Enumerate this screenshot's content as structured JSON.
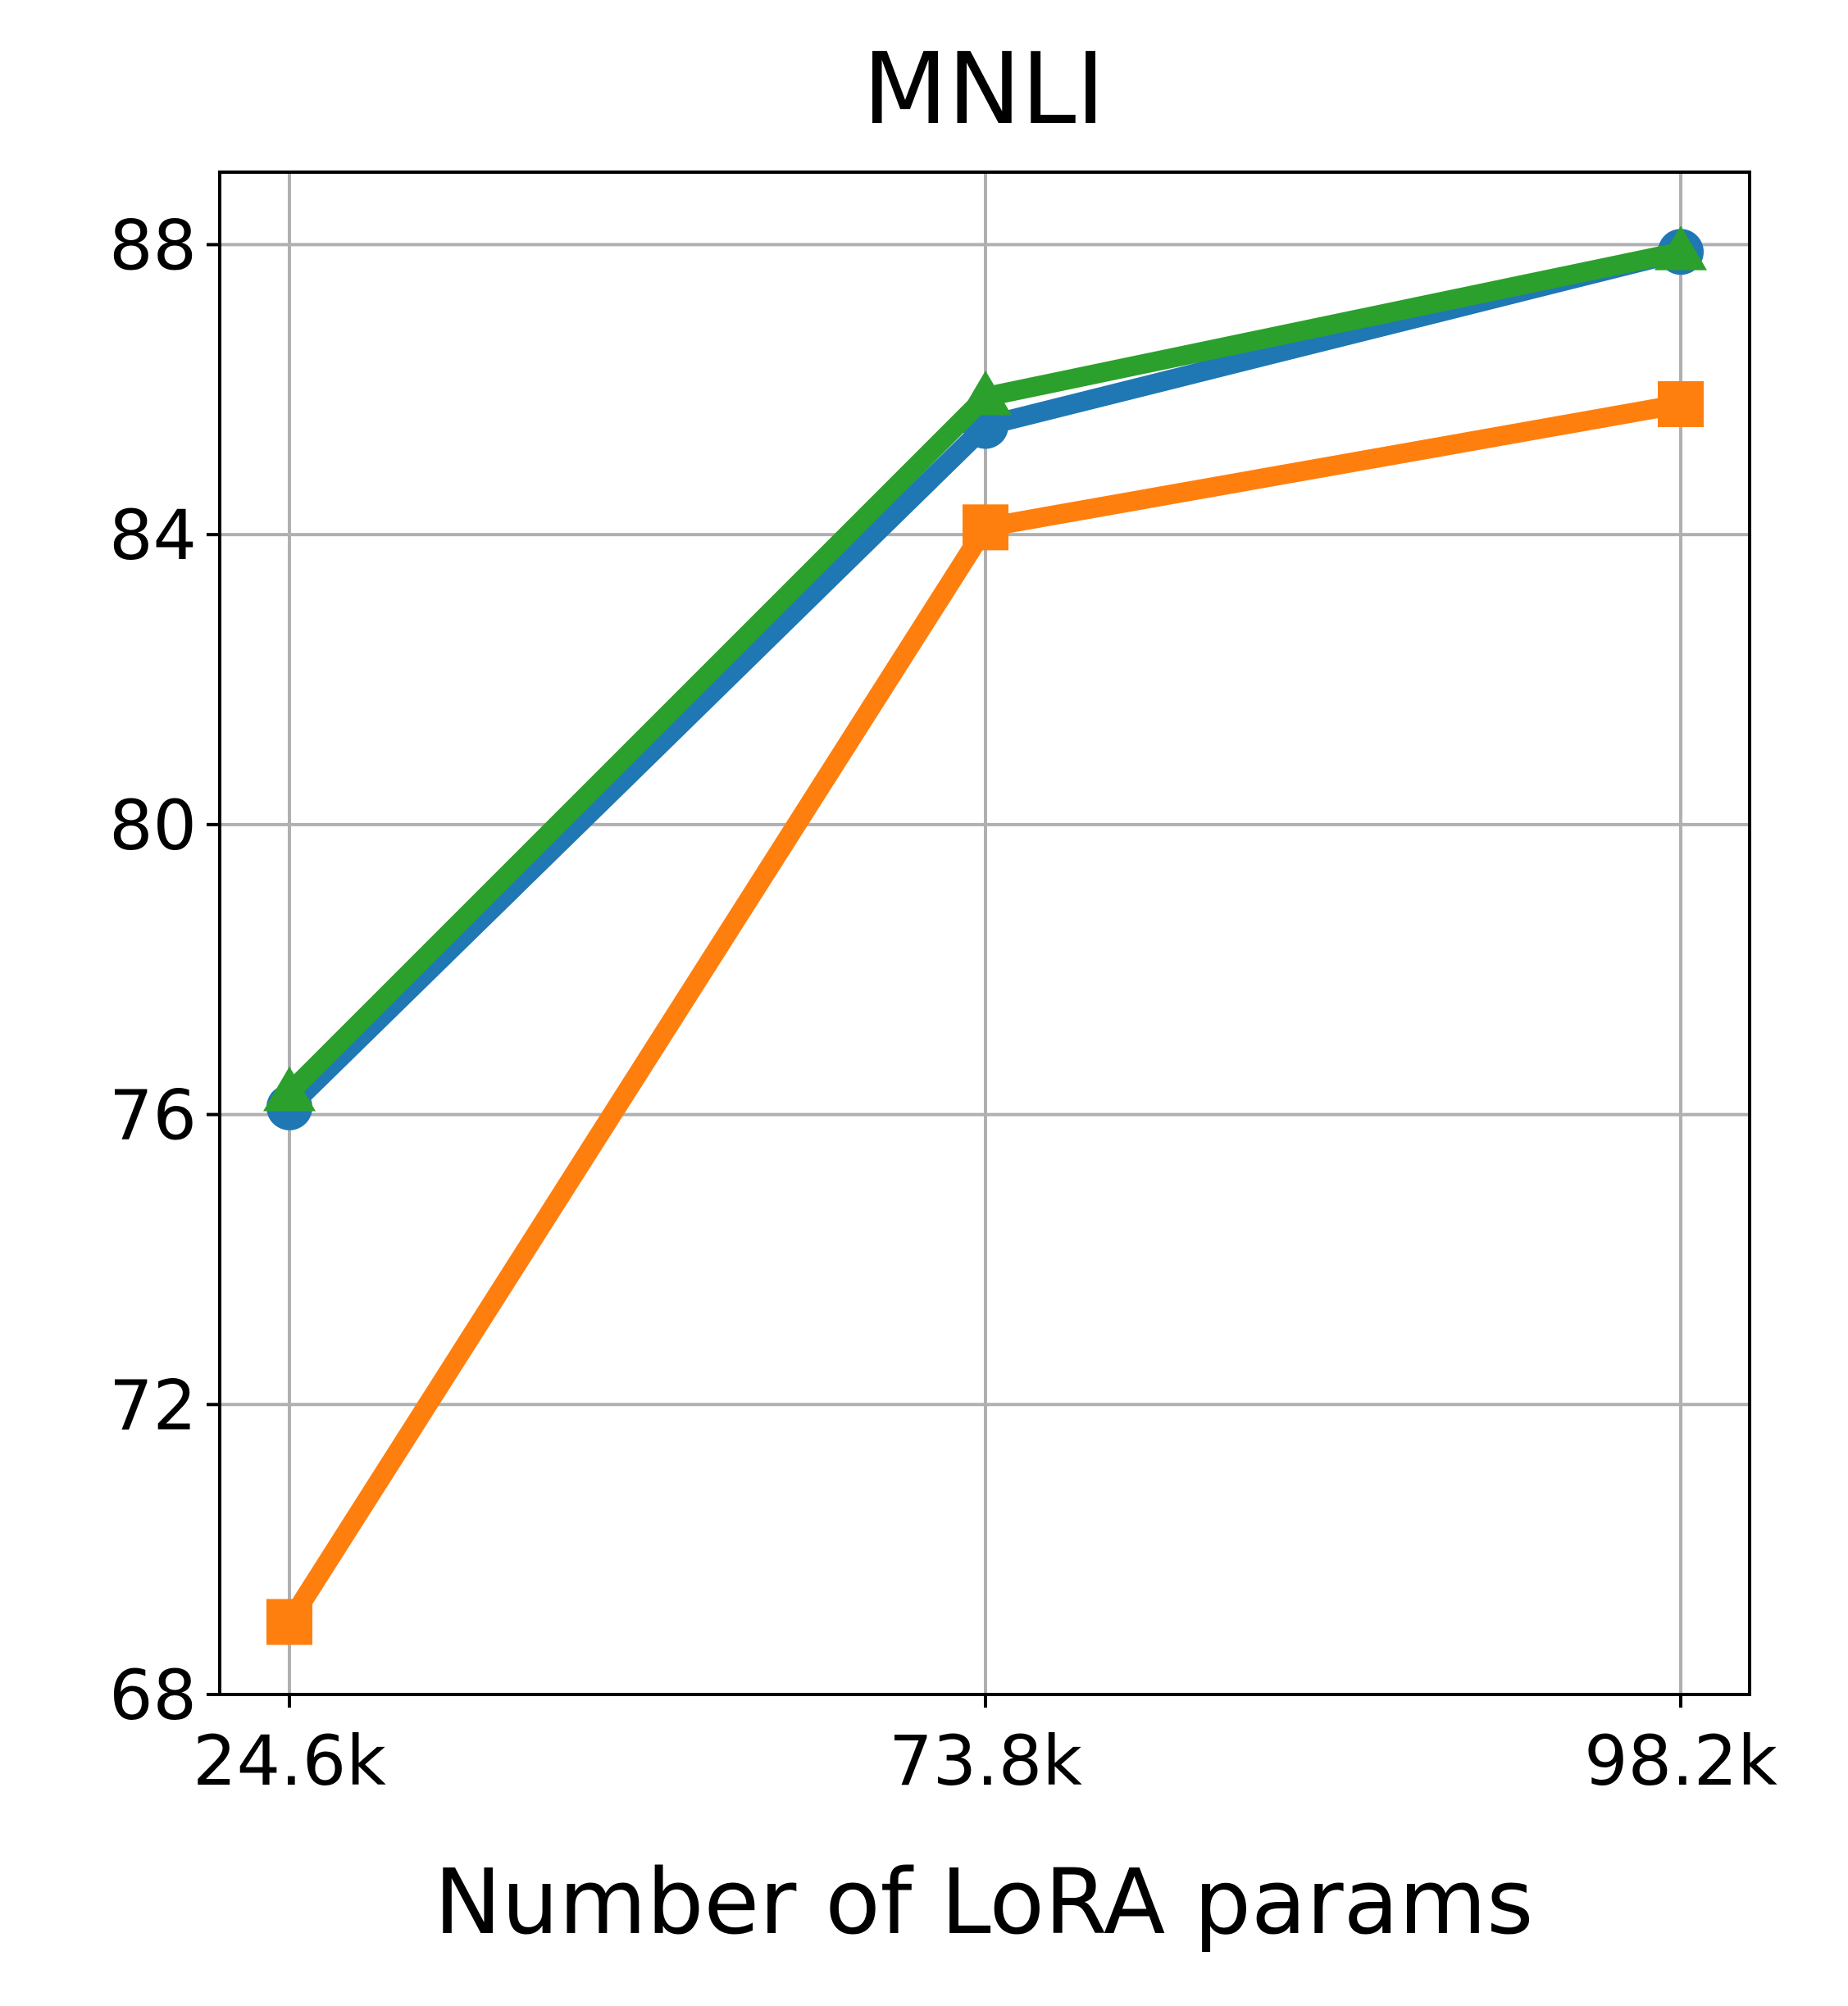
{
  "chart_data": {
    "type": "line",
    "title": "MNLI",
    "xlabel": "Number of LoRA params",
    "ylabel": "",
    "categories": [
      "24.6k",
      "73.8k",
      "98.2k"
    ],
    "ylim": [
      68,
      89
    ],
    "yticks": [
      68,
      72,
      76,
      80,
      84,
      88
    ],
    "grid": true,
    "legend": "none",
    "series": [
      {
        "marker": "circle",
        "color": "#1f77b4",
        "values": [
          76.1,
          85.5,
          87.9
        ]
      },
      {
        "marker": "square",
        "color": "#ff7f0e",
        "values": [
          69.0,
          84.1,
          85.8
        ]
      },
      {
        "marker": "triangle",
        "color": "#2ca02c",
        "values": [
          76.3,
          85.9,
          87.9
        ]
      }
    ]
  }
}
